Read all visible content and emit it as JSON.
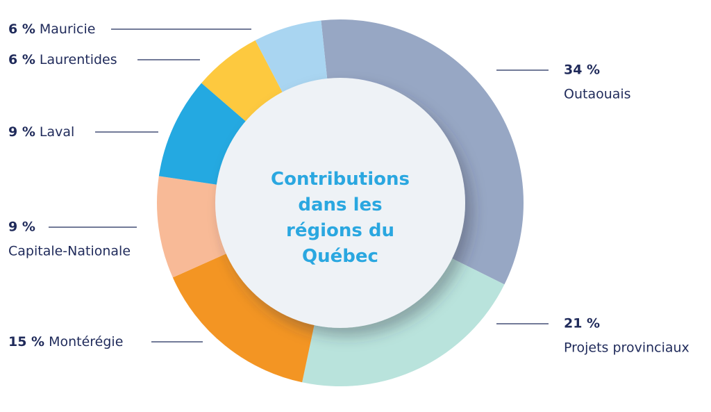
{
  "chart_data": {
    "type": "donut",
    "title": "Contributions dans les régions du Québec",
    "categories": [
      "Outaouais",
      "Projets provinciaux",
      "Montérégie",
      "Capitale-Nationale",
      "Laval",
      "Laurentides",
      "Mauricie"
    ],
    "values": [
      34,
      21,
      15,
      9,
      9,
      6,
      6
    ],
    "value_labels": [
      "34 %",
      "21 %",
      "15 %",
      "9 %",
      "9 %",
      "6 %",
      "6 %"
    ],
    "colors": [
      "#97a7c4",
      "#b9e3dc",
      "#f39523",
      "#f8ba97",
      "#24a9e1",
      "#fdc93f",
      "#a9d5f1"
    ]
  }
}
